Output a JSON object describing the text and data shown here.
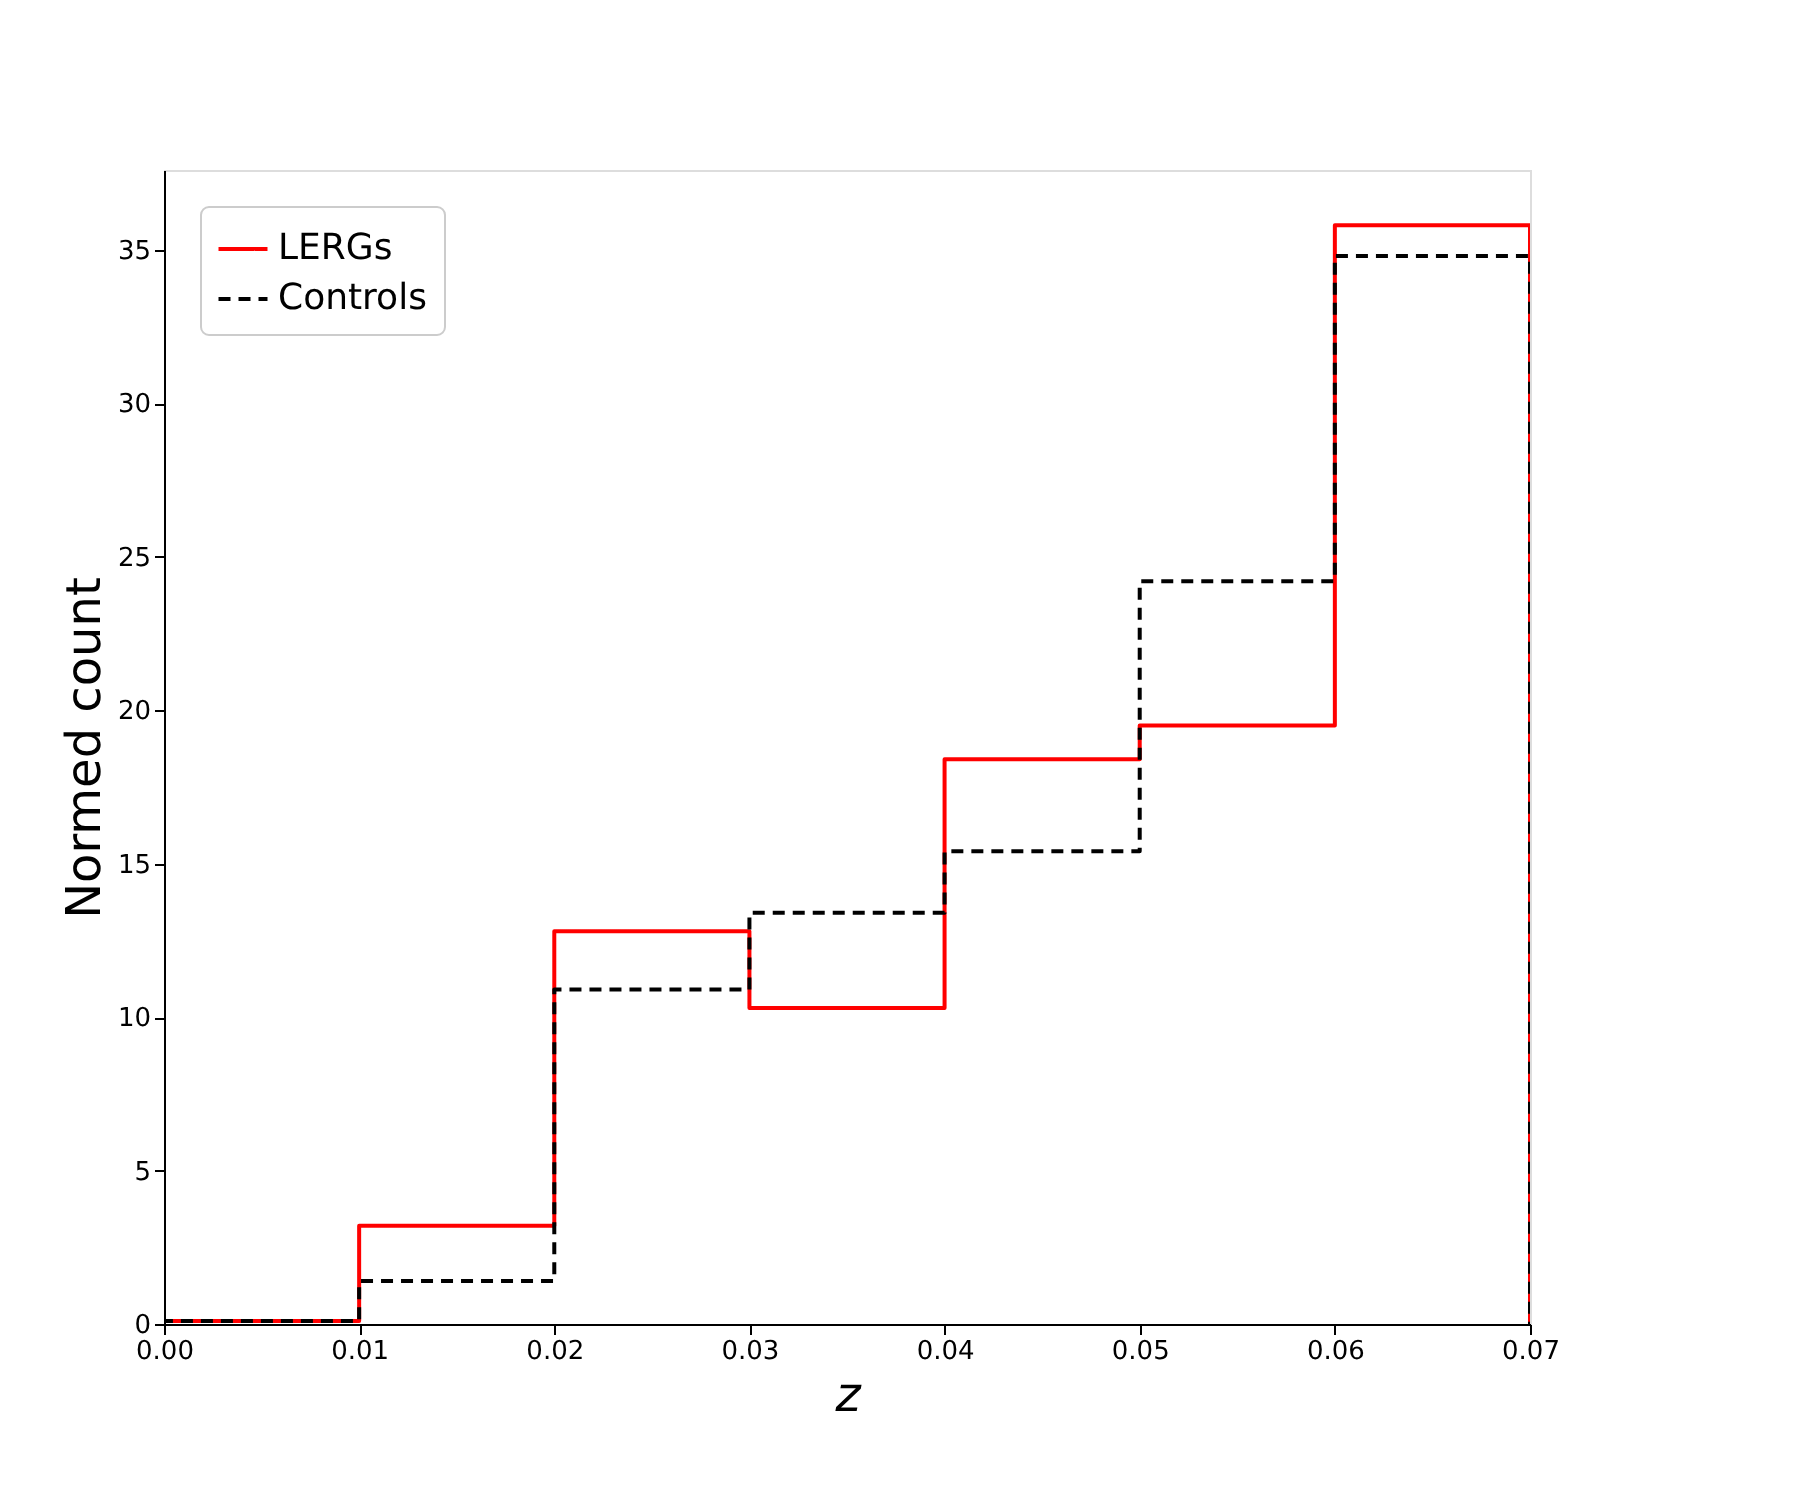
{
  "chart_data": {
    "type": "histogram",
    "xlabel": "z",
    "ylabel": "Normed count",
    "bins": [
      0.0,
      0.01,
      0.02,
      0.03,
      0.04,
      0.05,
      0.06,
      0.07
    ],
    "series": [
      {
        "name": "LERGs",
        "color": "#ff0000",
        "line_style": "solid",
        "values": [
          0.1,
          3.2,
          12.8,
          10.3,
          18.4,
          19.5,
          35.8
        ]
      },
      {
        "name": "Controls",
        "color": "#000000",
        "line_style": "dashed",
        "values": [
          0.1,
          1.4,
          10.9,
          13.4,
          15.4,
          24.2,
          34.8
        ]
      }
    ],
    "xlim": [
      0.0,
      0.07
    ],
    "xticks": [
      {
        "value": 0,
        "label": "0.00"
      },
      {
        "value": 0.01,
        "label": "0.01"
      },
      {
        "value": 0.02,
        "label": "0.02"
      },
      {
        "value": 0.03,
        "label": "0.03"
      },
      {
        "value": 0.04,
        "label": "0.04"
      },
      {
        "value": 0.05,
        "label": "0.05"
      },
      {
        "value": 0.06,
        "label": "0.06"
      },
      {
        "value": 0.07,
        "label": "0.07"
      }
    ],
    "ylim": [
      0,
      37.6
    ],
    "yticks": [
      0,
      5,
      10,
      15,
      20,
      25,
      30,
      35
    ],
    "grid": false,
    "legend": "top left"
  }
}
